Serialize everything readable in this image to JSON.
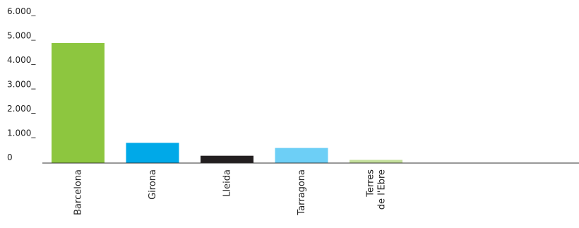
{
  "chart_data": {
    "type": "bar",
    "categories": [
      [
        "Barcelona"
      ],
      [
        "Girona"
      ],
      [
        "Lleida"
      ],
      [
        "Tarragona"
      ],
      [
        "Terres",
        "de l'Ebre"
      ]
    ],
    "values": [
      4930,
      830,
      300,
      620,
      130
    ],
    "colors": [
      "#8dc63f",
      "#00a9e8",
      "#231f20",
      "#6dcff6",
      "#c4df9b"
    ],
    "y_tick_labels": [
      "0",
      "1.000_",
      "2.000_",
      "3.000_",
      "4.000_",
      "5.000_",
      "6.000_"
    ],
    "y_tick_values": [
      0,
      1000,
      2000,
      3000,
      4000,
      5000,
      6000
    ],
    "ylim": [
      0,
      6000
    ],
    "grid": false,
    "legend": "none",
    "title": "",
    "xlabel": "",
    "ylabel": ""
  }
}
